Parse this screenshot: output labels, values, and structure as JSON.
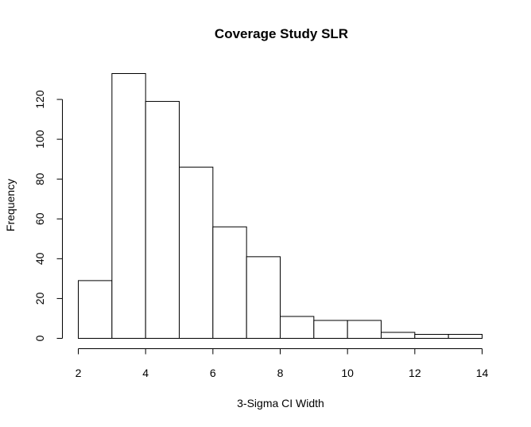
{
  "chart_data": {
    "type": "bar",
    "title": "Coverage Study SLR",
    "xlabel": "3-Sigma CI Width",
    "ylabel": "Frequency",
    "bin_edges": [
      2,
      3,
      4,
      5,
      6,
      7,
      8,
      9,
      10,
      11,
      12,
      13,
      14
    ],
    "values": [
      29,
      133,
      119,
      86,
      56,
      41,
      11,
      9,
      9,
      3,
      2,
      2
    ],
    "xlim": [
      2,
      14
    ],
    "ylim": [
      0,
      133
    ],
    "x_ticks": [
      2,
      4,
      6,
      8,
      10,
      12,
      14
    ],
    "y_ticks": [
      0,
      20,
      40,
      60,
      80,
      100,
      120
    ],
    "grid": false,
    "bar_fill": "#ffffff",
    "bar_stroke": "#000000"
  }
}
